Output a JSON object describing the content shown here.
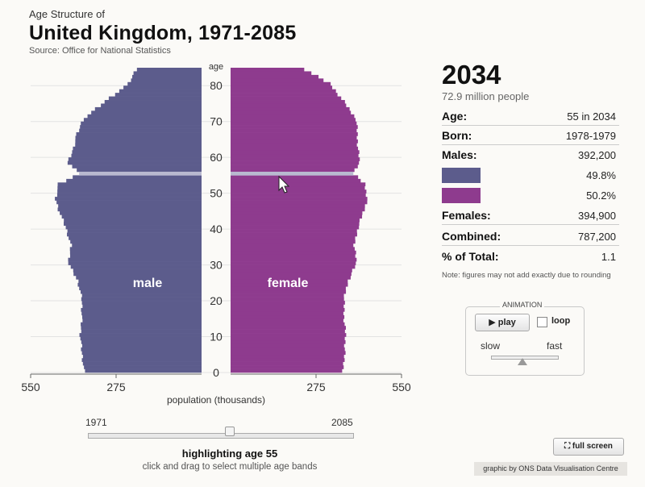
{
  "header": {
    "subtitle": "Age Structure of",
    "title": "United Kingdom, 1971-2085",
    "source": "Source: Office for National Statistics"
  },
  "chart_data": {
    "type": "bar",
    "orientation": "horizontal-population-pyramid",
    "year": 2034,
    "ylabel": "age",
    "xlabel": "population (thousands)",
    "x_ticks": [
      "550",
      "275",
      "0",
      "275",
      "550"
    ],
    "xlim": [
      -550,
      550
    ],
    "y_ticks": [
      "0",
      "10",
      "20",
      "30",
      "40",
      "50",
      "60",
      "70",
      "80"
    ],
    "ylim": [
      0,
      85
    ],
    "highlighted_age": 55,
    "colors": {
      "male": "#5c5c8c",
      "female": "#8e3b8e",
      "highlight": "#b9b9d0"
    },
    "series": [
      {
        "name": "male",
        "sides": "left",
        "ages": [
          0,
          5,
          10,
          15,
          20,
          25,
          30,
          35,
          40,
          45,
          48,
          52,
          55,
          58,
          62,
          65,
          70,
          75,
          80,
          85
        ],
        "values": [
          378,
          385,
          390,
          385,
          385,
          398,
          428,
          420,
          437,
          460,
          470,
          460,
          392,
          430,
          412,
          405,
          382,
          312,
          235,
          205
        ]
      },
      {
        "name": "female",
        "sides": "right",
        "ages": [
          0,
          5,
          10,
          15,
          20,
          25,
          30,
          35,
          40,
          45,
          48,
          52,
          55,
          58,
          62,
          65,
          70,
          75,
          80,
          85
        ],
        "values": [
          362,
          367,
          370,
          365,
          365,
          378,
          405,
          398,
          410,
          430,
          440,
          432,
          395,
          415,
          410,
          408,
          405,
          365,
          320,
          220
        ]
      }
    ]
  },
  "panel": {
    "year": "2034",
    "total": "72.9 million people",
    "rows": [
      {
        "label": "Age:",
        "value": "55 in 2034"
      },
      {
        "label": "Born:",
        "value": "1978-1979"
      },
      {
        "label": "Males:",
        "value": "392,200"
      },
      {
        "label": "",
        "value": "49.8%"
      },
      {
        "label": "",
        "value": "50.2%"
      },
      {
        "label": "Females:",
        "value": "394,900"
      },
      {
        "label": "Combined:",
        "value": "787,200"
      },
      {
        "label": "% of Total:",
        "value": "1.1"
      }
    ],
    "note": "Note: figures may not add exactly due to rounding"
  },
  "animation": {
    "title": "ANIMATION",
    "play_label": "▶  play",
    "loop_label": "loop",
    "slow_label": "slow",
    "fast_label": "fast",
    "speed_level": 0.45
  },
  "timeline": {
    "start": "1971",
    "end": "2085",
    "current_year": 2034,
    "highlight_text": "highlighting age 55",
    "hint": "click and drag to select multiple age bands"
  },
  "footer": {
    "fullscreen_label": "⛶  full screen",
    "credit": "graphic by ONS Data Visualisation Centre"
  },
  "icons": {
    "play": "play-icon",
    "fullscreen": "fullscreen-icon",
    "cursor": "mouse-pointer-icon"
  }
}
